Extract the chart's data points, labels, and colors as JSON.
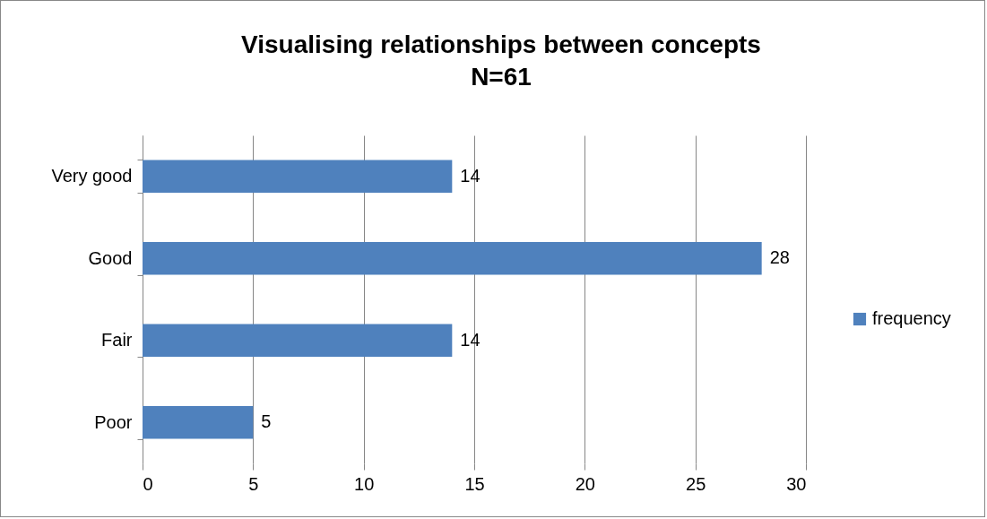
{
  "chart_data": {
    "type": "bar",
    "orientation": "horizontal",
    "title": "Visualising relationships between concepts",
    "subtitle": "N=61",
    "categories": [
      "Very good",
      "Good",
      "Fair",
      "Poor"
    ],
    "series": [
      {
        "name": "frequency",
        "color": "#4f81bd",
        "values": [
          14,
          28,
          14,
          5
        ]
      }
    ],
    "xlim": [
      0,
      30
    ],
    "xticks": [
      0,
      5,
      10,
      15,
      20,
      25,
      30
    ],
    "grid": "x",
    "legend": "right",
    "data_labels": true
  }
}
